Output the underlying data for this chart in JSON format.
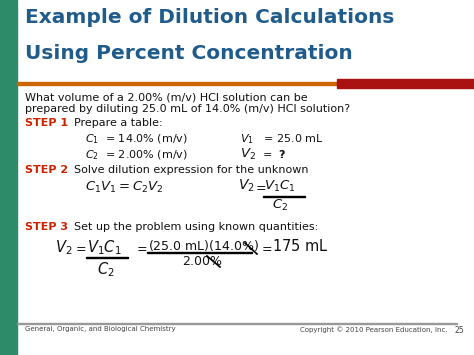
{
  "title_line1": "Example of Dilution Calculations",
  "title_line2": "Using Percent Concentration",
  "title_color": "#1F5C8B",
  "bg_color": "#FFFFFF",
  "left_bar_color": "#2E8B6A",
  "orange_bar_color": "#CC6600",
  "red_bar_color": "#AA1111",
  "step_color": "#CC2200",
  "body_color": "#111111",
  "footer_color": "#444444",
  "footer_left": "General, Organic, and Biological Chemistry",
  "footer_right": "Copyright © 2010 Pearson Education, Inc.",
  "footer_page": "25"
}
